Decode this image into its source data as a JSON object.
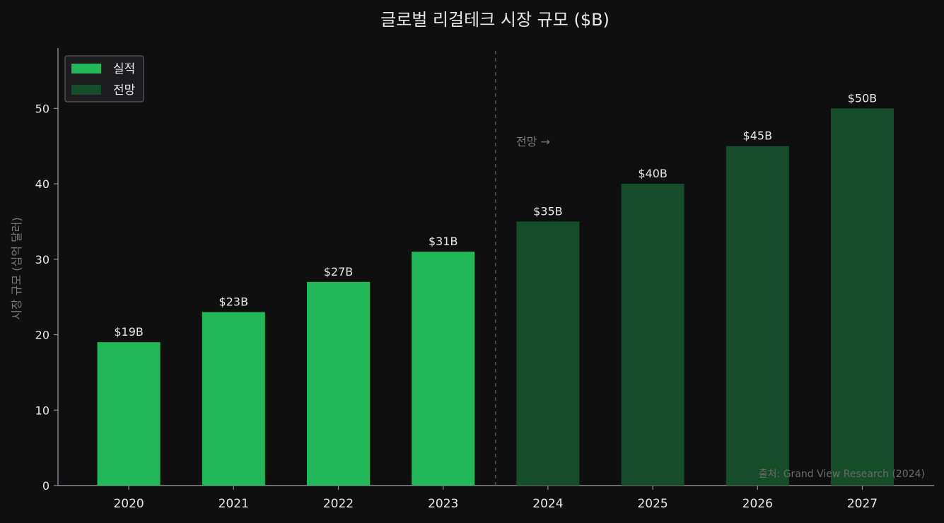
{
  "chart_data": {
    "type": "bar",
    "title": "글로벌 리걸테크 시장 규모 ($B)",
    "ylabel": "시장 규모 (십억 달러)",
    "xlabel": "",
    "ylim": [
      0,
      58
    ],
    "yticks": [
      0,
      10,
      20,
      30,
      40,
      50
    ],
    "categories": [
      "2020",
      "2021",
      "2022",
      "2023",
      "2024",
      "2025",
      "2026",
      "2027"
    ],
    "values": [
      19,
      23,
      27,
      31,
      35,
      40,
      45,
      50
    ],
    "value_labels": [
      "$19B",
      "$23B",
      "$27B",
      "$31B",
      "$35B",
      "$40B",
      "$45B",
      "$50B"
    ],
    "bar_kind": [
      "actual",
      "actual",
      "actual",
      "actual",
      "forecast",
      "forecast",
      "forecast",
      "forecast"
    ],
    "legend": {
      "placement": "top-left",
      "entries": [
        {
          "label": "실적",
          "kind": "actual"
        },
        {
          "label": "전망",
          "kind": "forecast"
        }
      ]
    },
    "divider_after_category": "2023",
    "forecast_annotation": "전망 →",
    "source_note": "출처: Grand View Research (2024)",
    "grid": false
  },
  "colors": {
    "background": "#0f0f0f",
    "actual": "#22b85a",
    "forecast": "#154d2b",
    "axis": "#8a8a94",
    "text": "#e8e8e8",
    "muted_text": "#7a7a7a"
  }
}
